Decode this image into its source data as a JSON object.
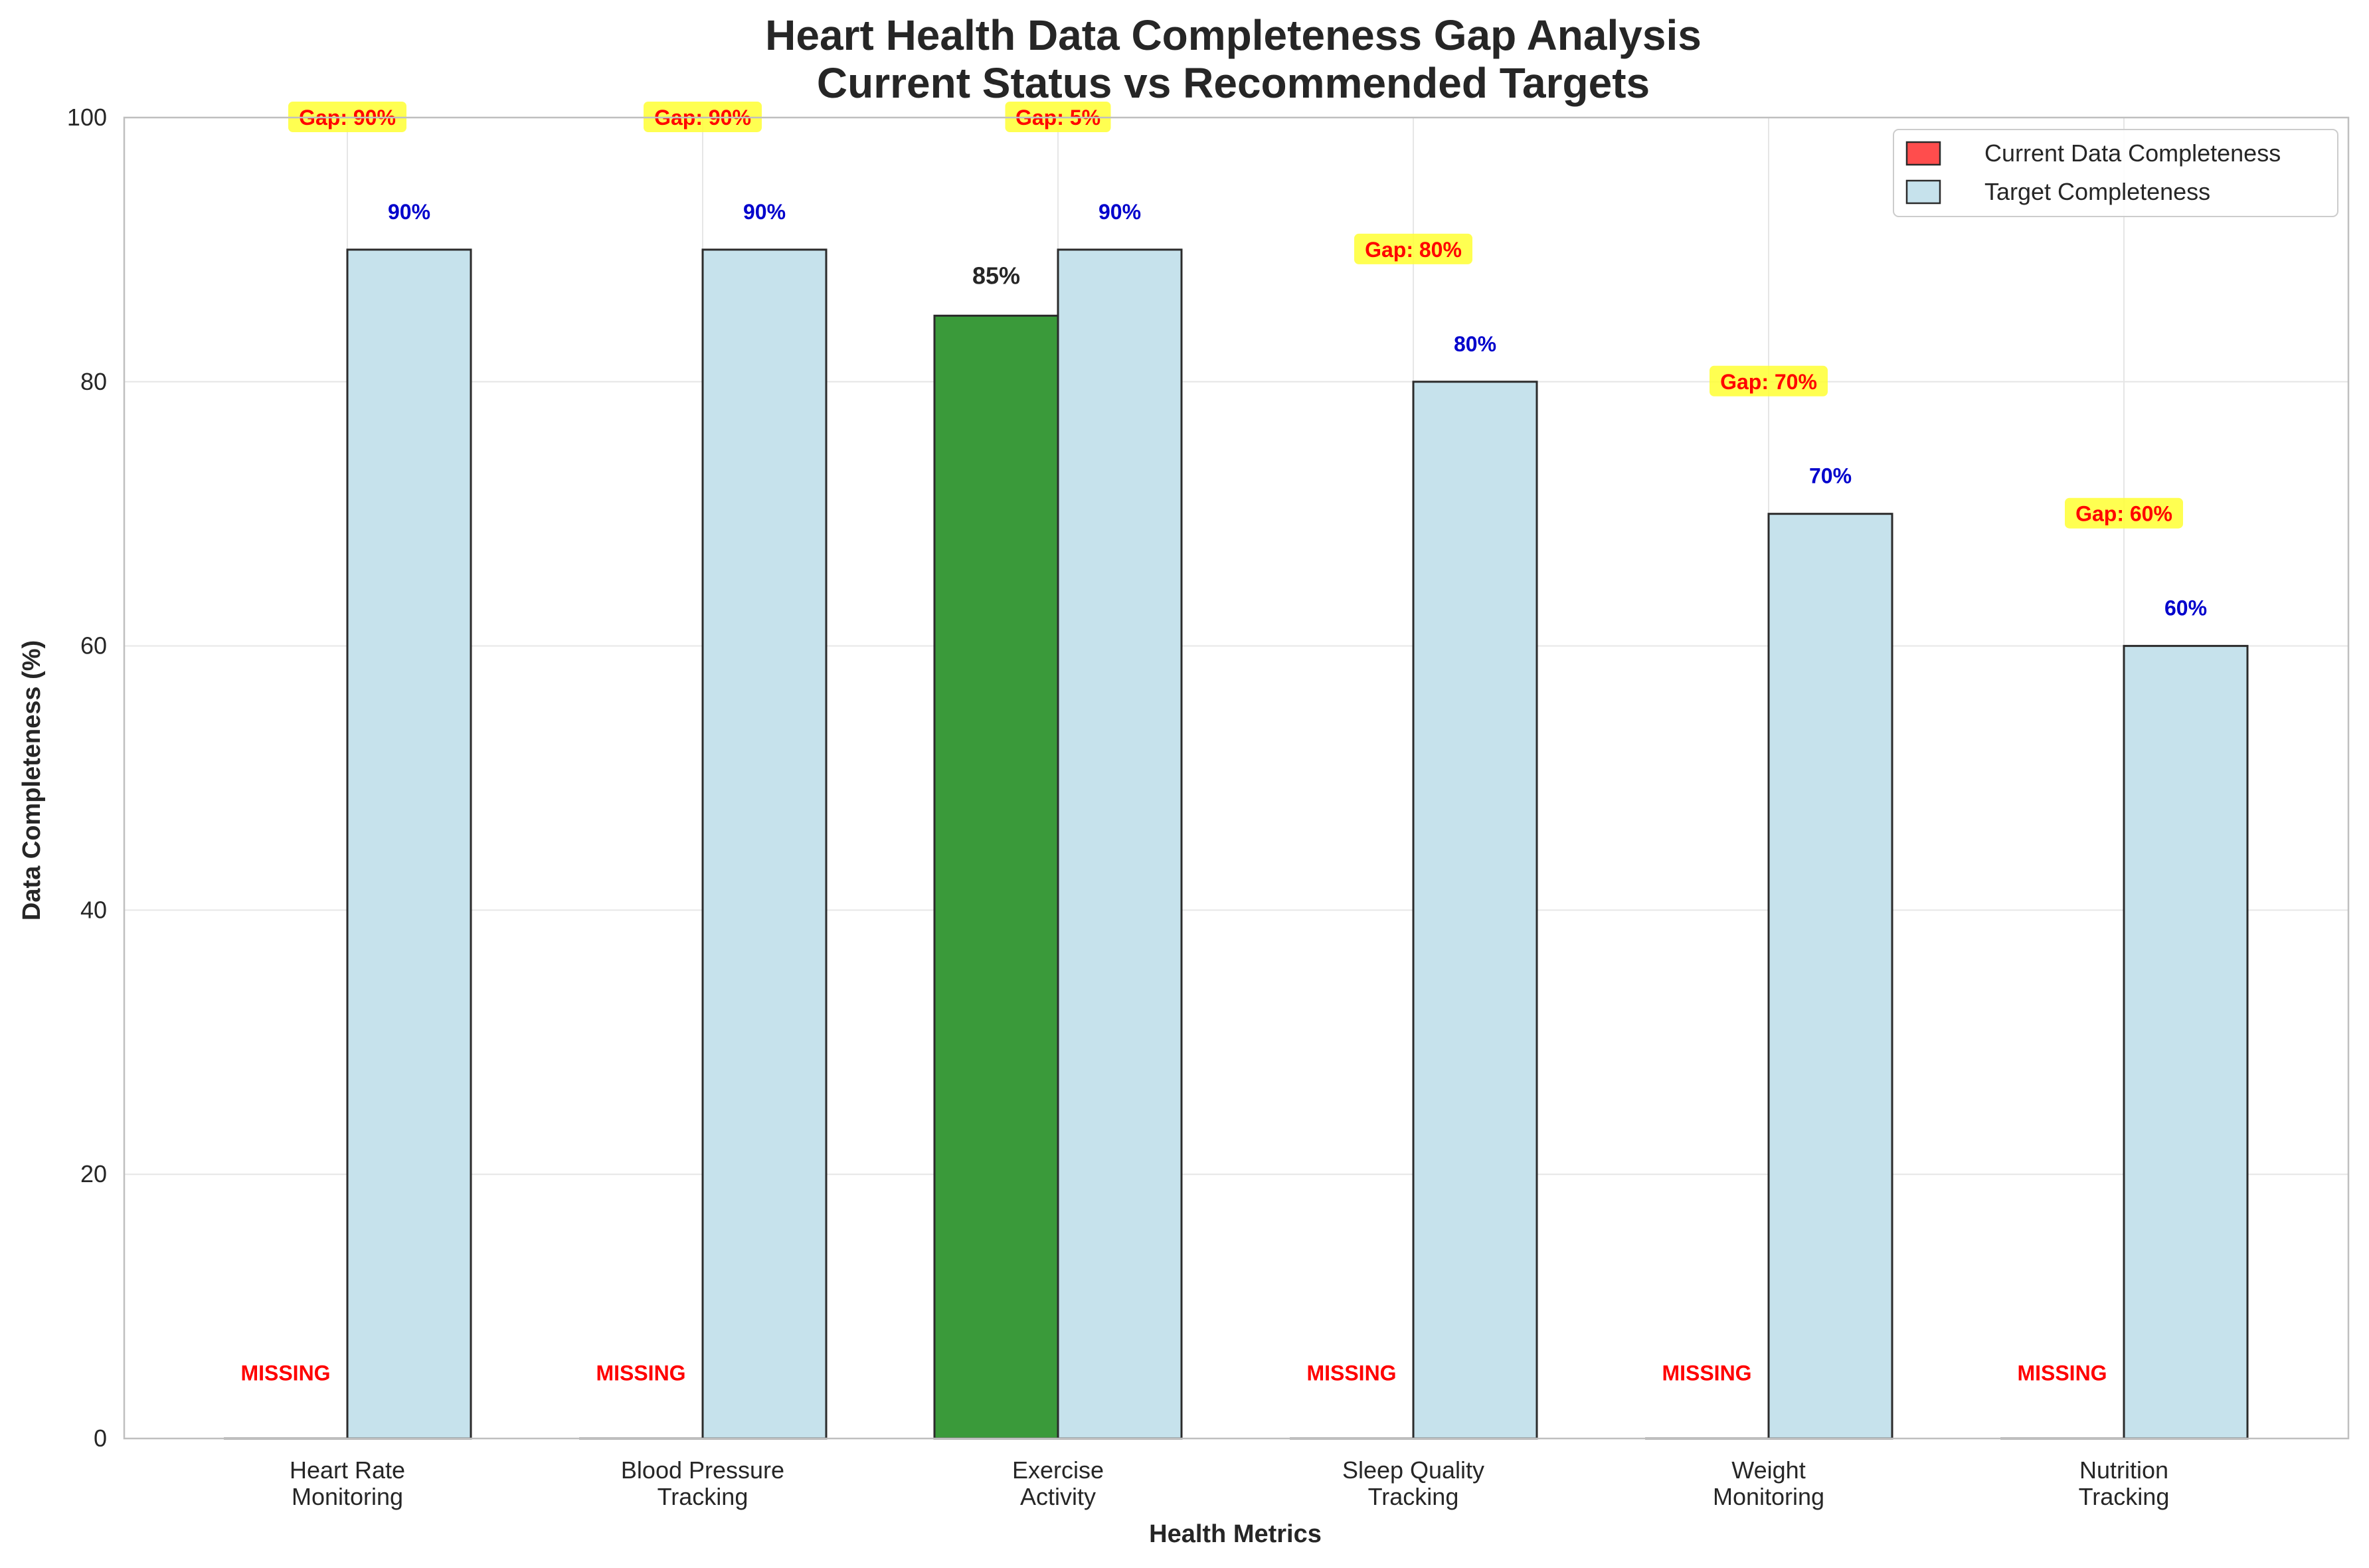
{
  "chart_data": {
    "type": "bar",
    "title_line1": "Heart Health Data Completeness Gap Analysis",
    "title_line2": "Current Status vs Recommended Targets",
    "xlabel": "Health Metrics",
    "ylabel": "Data Completeness (%)",
    "ylim": [
      0,
      100
    ],
    "yticks": [
      "0",
      "20",
      "40",
      "60",
      "80",
      "100"
    ],
    "grid": true,
    "legend_position": "top-right",
    "categories": [
      [
        "Heart Rate",
        "Monitoring"
      ],
      [
        "Blood Pressure",
        "Tracking"
      ],
      [
        "Exercise",
        "Activity"
      ],
      [
        "Sleep Quality",
        "Tracking"
      ],
      [
        "Weight",
        "Monitoring"
      ],
      [
        "Nutrition",
        "Tracking"
      ]
    ],
    "series": [
      {
        "name": "Current Data Completeness",
        "values": [
          0,
          0,
          85,
          0,
          0,
          0
        ],
        "labels": [
          "MISSING",
          "MISSING",
          "85%",
          "MISSING",
          "MISSING",
          "MISSING"
        ],
        "color": "#ff4d4d",
        "present_color": "#3a9a3a"
      },
      {
        "name": "Target Completeness",
        "values": [
          90,
          90,
          90,
          80,
          70,
          60
        ],
        "labels": [
          "90%",
          "90%",
          "90%",
          "80%",
          "70%",
          "60%"
        ],
        "color": "#c6e2ec"
      }
    ],
    "gap_labels": [
      "Gap: 90%",
      "Gap: 90%",
      "Gap: 5%",
      "Gap: 80%",
      "Gap: 70%",
      "Gap: 60%"
    ],
    "colors": {
      "target_text": "#0000cc",
      "missing_text": "#ff0000",
      "gap_box": "#ffff33",
      "gap_text": "#ff0000",
      "grid": "#e6e6e6",
      "spine": "#bfbfbf",
      "edge": "#2b2b2b"
    }
  }
}
